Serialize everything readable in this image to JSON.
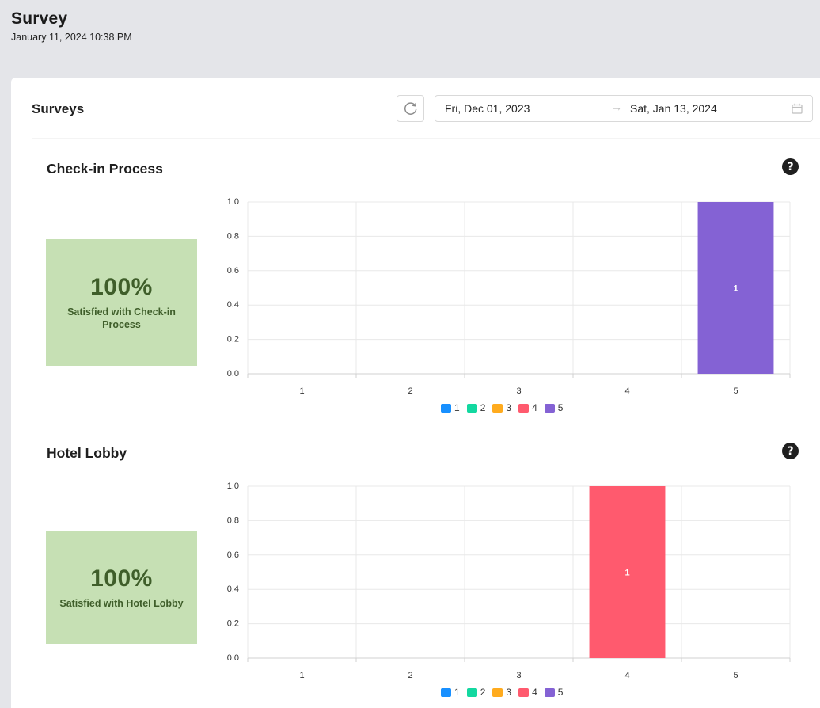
{
  "page": {
    "title": "Survey",
    "subtitle": "January 11, 2024 10:38 PM"
  },
  "card": {
    "title": "Surveys",
    "date_range": {
      "start": "Fri, Dec 01, 2023",
      "arrow": "→",
      "end": "Sat, Jan 13, 2024"
    }
  },
  "colors": {
    "1": "#1890ff",
    "2": "#13d8a0",
    "3": "#ffab1e",
    "4": "#ff5a6e",
    "5": "#8462d4",
    "stat_bg": "#c6e0b4"
  },
  "legend": [
    {
      "label": "1",
      "color": "#1890ff"
    },
    {
      "label": "2",
      "color": "#13d8a0"
    },
    {
      "label": "3",
      "color": "#ffab1e"
    },
    {
      "label": "4",
      "color": "#ff5a6e"
    },
    {
      "label": "5",
      "color": "#8462d4"
    }
  ],
  "surveys": [
    {
      "title": "Check-in Process",
      "help": "?",
      "stat_value": "100%",
      "stat_label": "Satisfied with Check-in Process",
      "chart_data": {
        "type": "bar",
        "categories": [
          "1",
          "2",
          "3",
          "4",
          "5"
        ],
        "values": [
          0,
          0,
          0,
          0,
          1
        ],
        "data_labels": [
          "",
          "",
          "",
          "",
          "1"
        ],
        "ylim": [
          0,
          1.0
        ],
        "yticks": [
          "0.0",
          "0.2",
          "0.4",
          "0.6",
          "0.8",
          "1.0"
        ],
        "grid": true,
        "legend": "bottom"
      }
    },
    {
      "title": "Hotel Lobby",
      "help": "?",
      "stat_value": "100%",
      "stat_label": "Satisfied with Hotel Lobby",
      "chart_data": {
        "type": "bar",
        "categories": [
          "1",
          "2",
          "3",
          "4",
          "5"
        ],
        "values": [
          0,
          0,
          0,
          1,
          0
        ],
        "data_labels": [
          "",
          "",
          "",
          "1",
          ""
        ],
        "ylim": [
          0,
          1.0
        ],
        "yticks": [
          "0.0",
          "0.2",
          "0.4",
          "0.6",
          "0.8",
          "1.0"
        ],
        "grid": true,
        "legend": "bottom"
      }
    }
  ]
}
